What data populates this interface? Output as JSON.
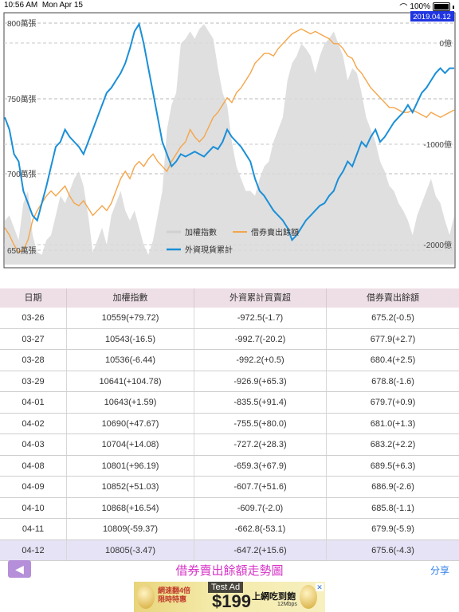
{
  "status_bar": {
    "time": "10:56 AM",
    "date": "Mon Apr 15",
    "battery": "100%"
  },
  "chart": {
    "date_badge": "2019.04.12",
    "left_axis_labels": [
      "800萬張",
      "750萬張",
      "700萬張",
      "650萬張"
    ],
    "right_axis_labels": [
      "0億",
      "-1000億",
      "-2000億"
    ],
    "legend": {
      "index": "加權指數",
      "short_balance": "借券賣出餘額",
      "foreign_cum": "外資現貨累計"
    },
    "colors": {
      "index": "#d9d9d9",
      "short_balance": "#f5a54a",
      "foreign_cum": "#1a8fd8",
      "badge": "#1f35e0"
    }
  },
  "chart_data": {
    "type": "line",
    "title": "",
    "series": [
      {
        "name": "加權指數",
        "type": "area",
        "values": [
          0.18,
          0.2,
          0.15,
          0.1,
          0.25,
          0.3,
          0.12,
          0.05,
          0.04,
          0.1,
          0.12,
          0.2,
          0.28,
          0.25,
          0.3,
          0.35,
          0.38,
          0.32,
          0.2,
          0.05,
          0.1,
          0.15,
          0.08,
          0.2,
          0.25,
          0.3,
          0.22,
          0.18,
          0.22,
          0.15,
          0.08,
          0.04,
          0.1,
          0.2,
          0.3,
          0.55,
          0.65,
          0.7,
          0.9,
          0.92,
          0.95,
          0.92,
          0.96,
          0.98,
          0.95,
          0.92,
          0.8,
          0.7,
          0.65,
          0.5,
          0.4,
          0.35,
          0.3,
          0.3,
          0.28,
          0.35,
          0.4,
          0.42,
          0.5,
          0.55,
          0.6,
          0.75,
          0.82,
          0.85,
          0.9,
          0.88,
          0.85,
          0.78,
          0.85,
          0.9,
          0.92,
          0.95,
          0.9,
          0.85,
          0.75,
          0.8,
          0.78,
          0.7,
          0.6,
          0.55,
          0.5,
          0.42,
          0.38,
          0.32,
          0.3,
          0.25,
          0.22,
          0.18,
          0.12,
          0.2,
          0.25,
          0.3,
          0.35,
          0.28,
          0.25,
          0.18,
          0.12,
          0.2
        ]
      },
      {
        "name": "借券賣出餘額",
        "values": [
          0.15,
          0.12,
          0.08,
          0.05,
          0.06,
          0.1,
          0.18,
          0.22,
          0.25,
          0.28,
          0.3,
          0.28,
          0.3,
          0.32,
          0.28,
          0.25,
          0.24,
          0.26,
          0.23,
          0.2,
          0.22,
          0.24,
          0.22,
          0.25,
          0.3,
          0.35,
          0.38,
          0.35,
          0.4,
          0.42,
          0.4,
          0.43,
          0.45,
          0.42,
          0.4,
          0.38,
          0.42,
          0.45,
          0.48,
          0.5,
          0.55,
          0.52,
          0.5,
          0.52,
          0.56,
          0.6,
          0.62,
          0.65,
          0.68,
          0.66,
          0.7,
          0.72,
          0.75,
          0.78,
          0.82,
          0.84,
          0.86,
          0.86,
          0.85,
          0.88,
          0.9,
          0.92,
          0.94,
          0.95,
          0.96,
          0.95,
          0.94,
          0.95,
          0.94,
          0.93,
          0.92,
          0.9,
          0.9,
          0.88,
          0.85,
          0.84,
          0.8,
          0.78,
          0.75,
          0.72,
          0.7,
          0.68,
          0.66,
          0.64,
          0.64,
          0.63,
          0.62,
          0.62,
          0.63,
          0.62,
          0.61,
          0.6,
          0.62,
          0.61,
          0.6,
          0.61,
          0.62,
          0.63
        ]
      },
      {
        "name": "外資現貨累計",
        "values": [
          0.6,
          0.55,
          0.45,
          0.42,
          0.3,
          0.25,
          0.2,
          0.18,
          0.25,
          0.32,
          0.4,
          0.48,
          0.5,
          0.55,
          0.52,
          0.5,
          0.48,
          0.45,
          0.5,
          0.55,
          0.6,
          0.65,
          0.7,
          0.72,
          0.75,
          0.78,
          0.82,
          0.88,
          0.95,
          0.98,
          0.9,
          0.8,
          0.7,
          0.6,
          0.5,
          0.45,
          0.4,
          0.42,
          0.45,
          0.44,
          0.45,
          0.46,
          0.45,
          0.44,
          0.46,
          0.48,
          0.47,
          0.5,
          0.55,
          0.52,
          0.5,
          0.48,
          0.45,
          0.42,
          0.35,
          0.3,
          0.28,
          0.25,
          0.22,
          0.2,
          0.18,
          0.15,
          0.1,
          0.12,
          0.15,
          0.18,
          0.2,
          0.22,
          0.24,
          0.25,
          0.28,
          0.3,
          0.35,
          0.38,
          0.42,
          0.4,
          0.45,
          0.5,
          0.48,
          0.52,
          0.55,
          0.5,
          0.52,
          0.55,
          0.58,
          0.6,
          0.62,
          0.65,
          0.62,
          0.66,
          0.7,
          0.72,
          0.75,
          0.78,
          0.8,
          0.78,
          0.8,
          0.8
        ]
      }
    ],
    "ylabel_left": "萬張",
    "ylabel_right": "億"
  },
  "table": {
    "headers": [
      "日期",
      "加權指數",
      "外資累計買賣超",
      "借券賣出餘額"
    ],
    "rows": [
      [
        "03-26",
        "10559(+79.72)",
        "-972.5(-1.7)",
        "675.2(-0.5)"
      ],
      [
        "03-27",
        "10543(-16.5)",
        "-992.7(-20.2)",
        "677.9(+2.7)"
      ],
      [
        "03-28",
        "10536(-6.44)",
        "-992.2(+0.5)",
        "680.4(+2.5)"
      ],
      [
        "03-29",
        "10641(+104.78)",
        "-926.9(+65.3)",
        "678.8(-1.6)"
      ],
      [
        "04-01",
        "10643(+1.59)",
        "-835.5(+91.4)",
        "679.7(+0.9)"
      ],
      [
        "04-02",
        "10690(+47.67)",
        "-755.5(+80.0)",
        "681.0(+1.3)"
      ],
      [
        "04-03",
        "10704(+14.08)",
        "-727.2(+28.3)",
        "683.2(+2.2)"
      ],
      [
        "04-08",
        "10801(+96.19)",
        "-659.3(+67.9)",
        "689.5(+6.3)"
      ],
      [
        "04-09",
        "10852(+51.03)",
        "-607.7(+51.6)",
        "686.9(-2.6)"
      ],
      [
        "04-10",
        "10868(+16.54)",
        "-609.7(-2.0)",
        "685.8(-1.1)"
      ],
      [
        "04-11",
        "10809(-59.37)",
        "-662.8(-53.1)",
        "679.9(-5.9)"
      ],
      [
        "04-12",
        "10805(-3.47)",
        "-647.2(+15.6)",
        "675.6(-4.3)"
      ]
    ]
  },
  "bottom_bar": {
    "back_icon": "◀",
    "title": "借券賣出餘額走勢圖",
    "share_label": "分享"
  },
  "ad": {
    "left_text_1": "網速翻4倍",
    "left_text_2": "限時特惠",
    "badge": "Test Ad",
    "price": "$199",
    "right_text": "上網吃到飽",
    "speed": "12Mbps",
    "close": "✕"
  }
}
